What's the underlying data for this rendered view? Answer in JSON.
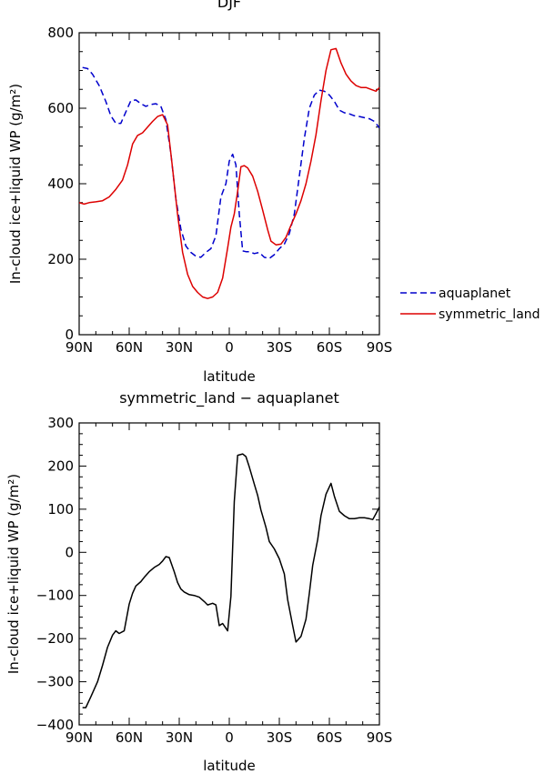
{
  "chart_data": [
    {
      "type": "line",
      "title": "DJF",
      "xlabel": "latitude",
      "ylabel": "In-cloud ice+liquid WP (g/m²)",
      "xlim": [
        90,
        -90
      ],
      "ylim": [
        0,
        800
      ],
      "xticks": [
        90,
        60,
        30,
        0,
        -30,
        -60,
        -90
      ],
      "xtick_labels": [
        "90N",
        "60N",
        "30N",
        "0",
        "30S",
        "60S",
        "90S"
      ],
      "yticks": [
        0,
        200,
        400,
        600,
        800
      ],
      "ytick_labels": [
        "0",
        "200",
        "400",
        "600",
        "800"
      ],
      "grid": false,
      "legend_position": "outside-right",
      "series": [
        {
          "name": "aquaplanet",
          "color": "#0000cc",
          "dash": "dashed",
          "points": [
            [
              88,
              708
            ],
            [
              85,
              705
            ],
            [
              82,
              690
            ],
            [
              78,
              660
            ],
            [
              74,
              618
            ],
            [
              71,
              580
            ],
            [
              68,
              560
            ],
            [
              65,
              560
            ],
            [
              62,
              590
            ],
            [
              59,
              620
            ],
            [
              56,
              622
            ],
            [
              53,
              612
            ],
            [
              50,
              605
            ],
            [
              47,
              610
            ],
            [
              44,
              612
            ],
            [
              41,
              605
            ],
            [
              38,
              570
            ],
            [
              35,
              480
            ],
            [
              32,
              360
            ],
            [
              29,
              280
            ],
            [
              26,
              235
            ],
            [
              23,
              218
            ],
            [
              20,
              208
            ],
            [
              17,
              205
            ],
            [
              14,
              218
            ],
            [
              11,
              228
            ],
            [
              8,
              262
            ],
            [
              5,
              365
            ],
            [
              2,
              400
            ],
            [
              0,
              460
            ],
            [
              -2,
              478
            ],
            [
              -4,
              450
            ],
            [
              -6,
              320
            ],
            [
              -8,
              222
            ],
            [
              -10,
              220
            ],
            [
              -12,
              220
            ],
            [
              -15,
              215
            ],
            [
              -18,
              218
            ],
            [
              -21,
              205
            ],
            [
              -24,
              202
            ],
            [
              -27,
              212
            ],
            [
              -30,
              228
            ],
            [
              -33,
              240
            ],
            [
              -36,
              268
            ],
            [
              -39,
              320
            ],
            [
              -42,
              420
            ],
            [
              -45,
              520
            ],
            [
              -48,
              600
            ],
            [
              -51,
              635
            ],
            [
              -54,
              648
            ],
            [
              -57,
              645
            ],
            [
              -60,
              635
            ],
            [
              -63,
              618
            ],
            [
              -66,
              595
            ],
            [
              -69,
              588
            ],
            [
              -72,
              585
            ],
            [
              -75,
              580
            ],
            [
              -78,
              578
            ],
            [
              -81,
              575
            ],
            [
              -84,
              572
            ],
            [
              -87,
              565
            ],
            [
              -90,
              548
            ]
          ]
        },
        {
          "name": "symmetric_land",
          "color": "#dd0000",
          "dash": "solid",
          "points": [
            [
              90,
              350
            ],
            [
              87,
              346
            ],
            [
              84,
              350
            ],
            [
              80,
              352
            ],
            [
              76,
              355
            ],
            [
              72,
              365
            ],
            [
              68,
              385
            ],
            [
              64,
              410
            ],
            [
              61,
              450
            ],
            [
              58,
              505
            ],
            [
              55,
              528
            ],
            [
              52,
              535
            ],
            [
              49,
              550
            ],
            [
              46,
              565
            ],
            [
              43,
              578
            ],
            [
              40,
              583
            ],
            [
              37,
              556
            ],
            [
              34,
              440
            ],
            [
              31,
              318
            ],
            [
              28,
              218
            ],
            [
              25,
              160
            ],
            [
              22,
              128
            ],
            [
              19,
              112
            ],
            [
              16,
              100
            ],
            [
              13,
              96
            ],
            [
              10,
              100
            ],
            [
              7,
              112
            ],
            [
              4,
              150
            ],
            [
              1,
              230
            ],
            [
              -1,
              285
            ],
            [
              -3,
              320
            ],
            [
              -5,
              380
            ],
            [
              -7,
              445
            ],
            [
              -9,
              448
            ],
            [
              -11,
              442
            ],
            [
              -14,
              420
            ],
            [
              -17,
              380
            ],
            [
              -20,
              330
            ],
            [
              -23,
              278
            ],
            [
              -25,
              248
            ],
            [
              -28,
              238
            ],
            [
              -31,
              240
            ],
            [
              -34,
              258
            ],
            [
              -37,
              290
            ],
            [
              -40,
              320
            ],
            [
              -43,
              355
            ],
            [
              -46,
              400
            ],
            [
              -49,
              460
            ],
            [
              -52,
              530
            ],
            [
              -55,
              620
            ],
            [
              -58,
              700
            ],
            [
              -61,
              755
            ],
            [
              -64,
              758
            ],
            [
              -67,
              720
            ],
            [
              -70,
              690
            ],
            [
              -73,
              672
            ],
            [
              -76,
              660
            ],
            [
              -79,
              655
            ],
            [
              -82,
              655
            ],
            [
              -85,
              650
            ],
            [
              -88,
              645
            ],
            [
              -90,
              655
            ]
          ]
        }
      ]
    },
    {
      "type": "line",
      "title": "symmetric_land − aquaplanet",
      "xlabel": "latitude",
      "ylabel": "In-cloud ice+liquid WP (g/m²)",
      "xlim": [
        90,
        -90
      ],
      "ylim": [
        -400,
        300
      ],
      "xticks": [
        90,
        60,
        30,
        0,
        -30,
        -60,
        -90
      ],
      "xtick_labels": [
        "90N",
        "60N",
        "30N",
        "0",
        "30S",
        "60S",
        "90S"
      ],
      "yticks": [
        -400,
        -300,
        -200,
        -100,
        0,
        100,
        200,
        300
      ],
      "ytick_labels": [
        "−400",
        "−300",
        "−200",
        "−100",
        "0",
        "100",
        "200",
        "300"
      ],
      "grid": false,
      "series": [
        {
          "name": "",
          "color": "#000000",
          "dash": "solid",
          "points": [
            [
              88,
              -360
            ],
            [
              86,
              -360
            ],
            [
              83,
              -335
            ],
            [
              79,
              -300
            ],
            [
              76,
              -262
            ],
            [
              73,
              -220
            ],
            [
              70,
              -192
            ],
            [
              68,
              -182
            ],
            [
              66,
              -188
            ],
            [
              63,
              -182
            ],
            [
              60,
              -120
            ],
            [
              58,
              -95
            ],
            [
              56,
              -78
            ],
            [
              53,
              -68
            ],
            [
              51,
              -58
            ],
            [
              48,
              -45
            ],
            [
              45,
              -35
            ],
            [
              42,
              -28
            ],
            [
              40,
              -20
            ],
            [
              38,
              -10
            ],
            [
              36,
              -12
            ],
            [
              33,
              -45
            ],
            [
              31,
              -70
            ],
            [
              29,
              -85
            ],
            [
              27,
              -92
            ],
            [
              24,
              -98
            ],
            [
              21,
              -100
            ],
            [
              18,
              -104
            ],
            [
              15,
              -114
            ],
            [
              13,
              -122
            ],
            [
              10,
              -118
            ],
            [
              8,
              -122
            ],
            [
              6,
              -170
            ],
            [
              4,
              -165
            ],
            [
              1,
              -182
            ],
            [
              -1,
              -102
            ],
            [
              -3,
              118
            ],
            [
              -5,
              225
            ],
            [
              -8,
              228
            ],
            [
              -10,
              222
            ],
            [
              -12,
              198
            ],
            [
              -15,
              158
            ],
            [
              -17,
              132
            ],
            [
              -19,
              98
            ],
            [
              -22,
              58
            ],
            [
              -24,
              25
            ],
            [
              -27,
              8
            ],
            [
              -30,
              -15
            ],
            [
              -33,
              -50
            ],
            [
              -35,
              -110
            ],
            [
              -38,
              -170
            ],
            [
              -40,
              -208
            ],
            [
              -43,
              -195
            ],
            [
              -46,
              -155
            ],
            [
              -48,
              -95
            ],
            [
              -50,
              -30
            ],
            [
              -53,
              30
            ],
            [
              -55,
              85
            ],
            [
              -58,
              135
            ],
            [
              -61,
              160
            ],
            [
              -63,
              130
            ],
            [
              -66,
              95
            ],
            [
              -69,
              85
            ],
            [
              -72,
              78
            ],
            [
              -75,
              78
            ],
            [
              -78,
              80
            ],
            [
              -81,
              80
            ],
            [
              -84,
              78
            ],
            [
              -86,
              76
            ],
            [
              -88,
              90
            ],
            [
              -90,
              105
            ]
          ]
        }
      ]
    }
  ]
}
